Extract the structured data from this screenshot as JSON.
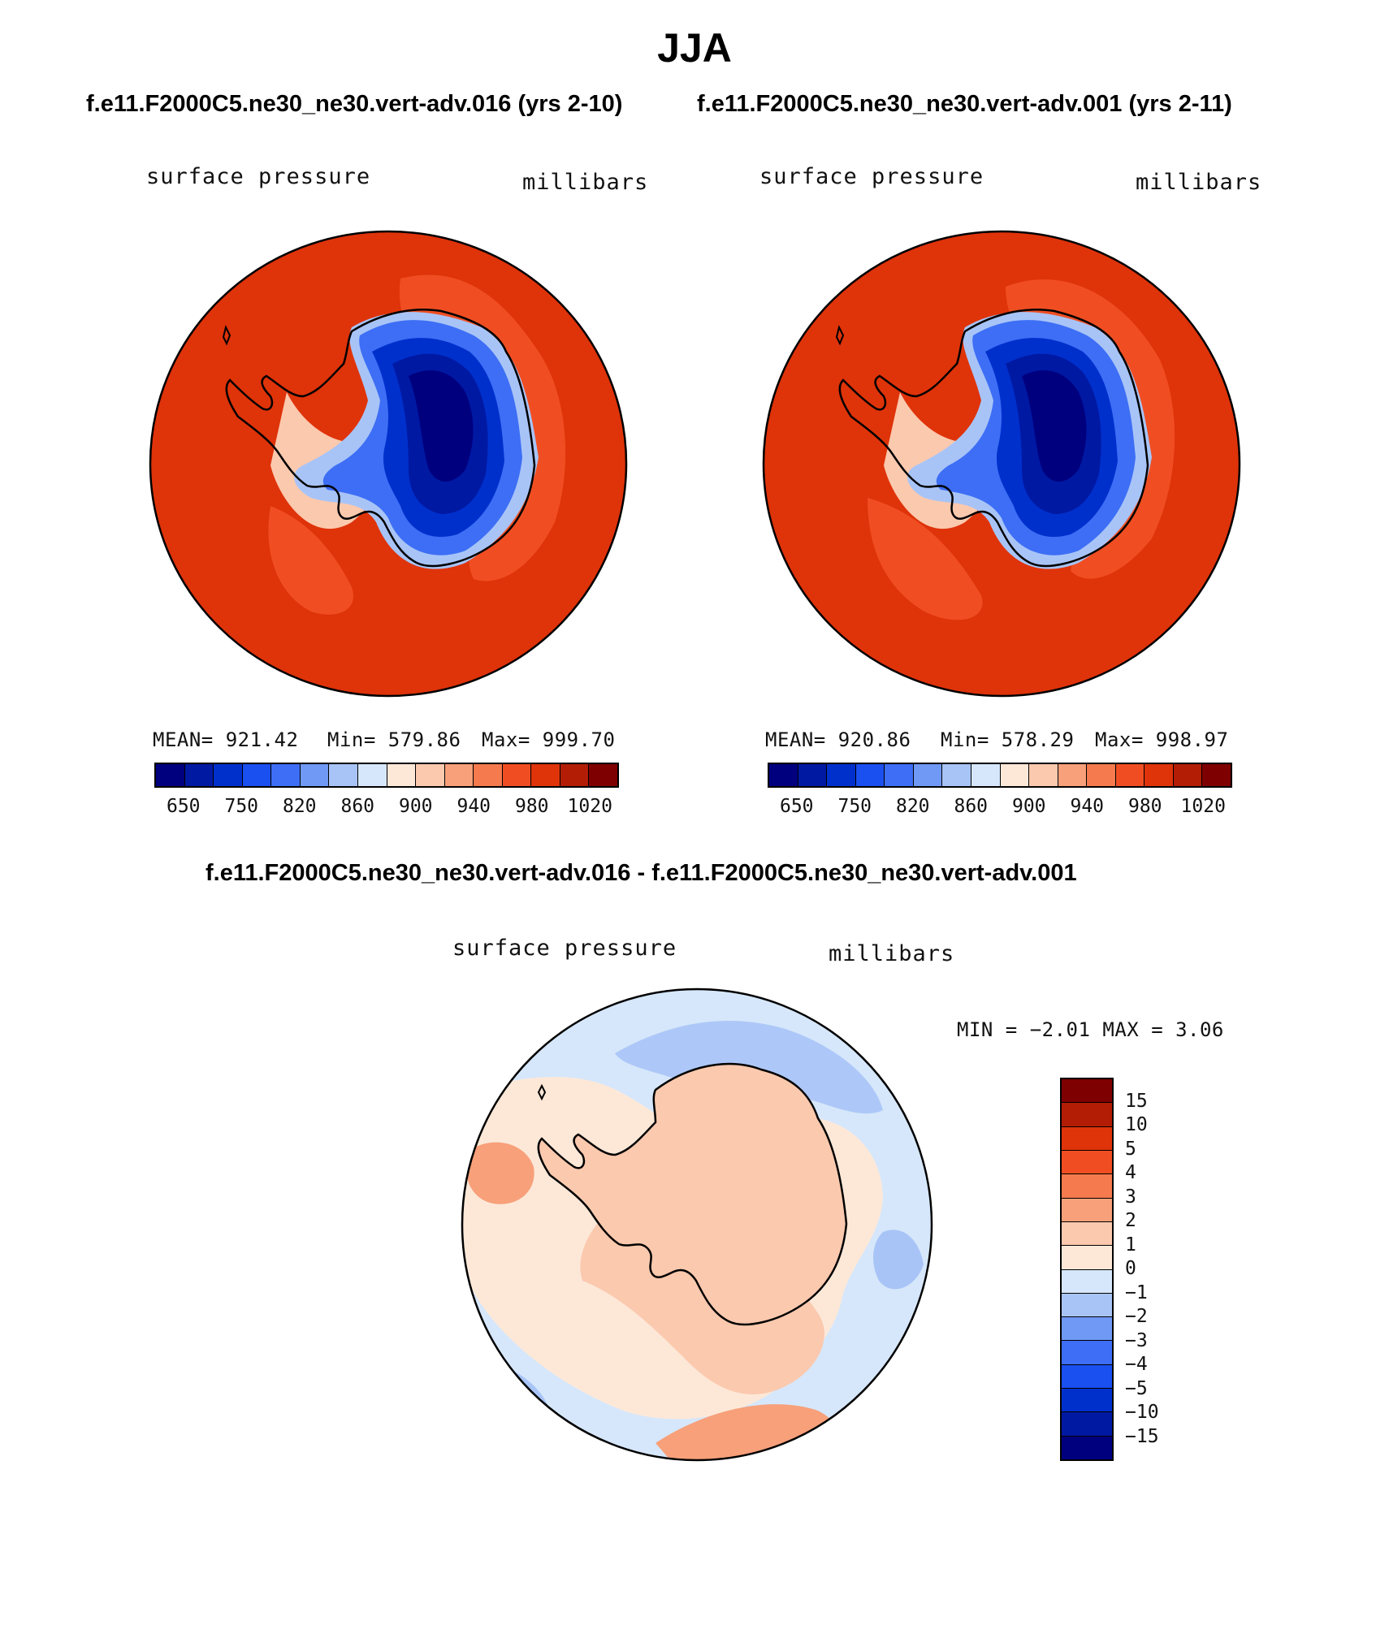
{
  "title": "JJA",
  "panels": [
    {
      "case_title": "f.e11.F2000C5.ne30_ne30.vert-adv.016 (yrs 2-10)",
      "variable": "surface pressure",
      "units": "millibars",
      "stats": {
        "mean": "MEAN= 921.42",
        "min": "Min= 579.86",
        "max": "Max= 999.70"
      }
    },
    {
      "case_title": "f.e11.F2000C5.ne30_ne30.vert-adv.001 (yrs 2-11)",
      "variable": "surface pressure",
      "units": "millibars",
      "stats": {
        "mean": "MEAN= 920.86",
        "min": "Min= 578.29",
        "max": "Max= 998.97"
      }
    }
  ],
  "colorbar_top": {
    "colors": [
      "#00007f",
      "#0019a3",
      "#0030cc",
      "#1a4ff0",
      "#3d6ef5",
      "#7099f5",
      "#a8c4f7",
      "#d6e7fb",
      "#fde8d8",
      "#fbc9ae",
      "#f7a07a",
      "#f57a4d",
      "#f04e22",
      "#df330a",
      "#b31d05",
      "#7f0000"
    ],
    "labels": [
      "650",
      "750",
      "820",
      "860",
      "900",
      "940",
      "980",
      "1020"
    ]
  },
  "diff_panel": {
    "title": "f.e11.F2000C5.ne30_ne30.vert-adv.016 - f.e11.F2000C5.ne30_ne30.vert-adv.001",
    "variable": "surface pressure",
    "units": "millibars",
    "minmax": "MIN =   −2.01 MAX =    3.06"
  },
  "colorbar_diff": {
    "colors": [
      "#7f0000",
      "#b31d05",
      "#df330a",
      "#f04e22",
      "#f57a4d",
      "#f7a07a",
      "#fbc9ae",
      "#fde8d8",
      "#d6e7fb",
      "#a8c4f7",
      "#7099f5",
      "#3d6ef5",
      "#1a4ff0",
      "#0030cc",
      "#0019a3",
      "#00007f"
    ],
    "labels": [
      "15",
      "10",
      "5",
      "4",
      "3",
      "2",
      "1",
      "0",
      "−1",
      "−2",
      "−3",
      "−4",
      "−5",
      "−10",
      "−15"
    ]
  }
}
